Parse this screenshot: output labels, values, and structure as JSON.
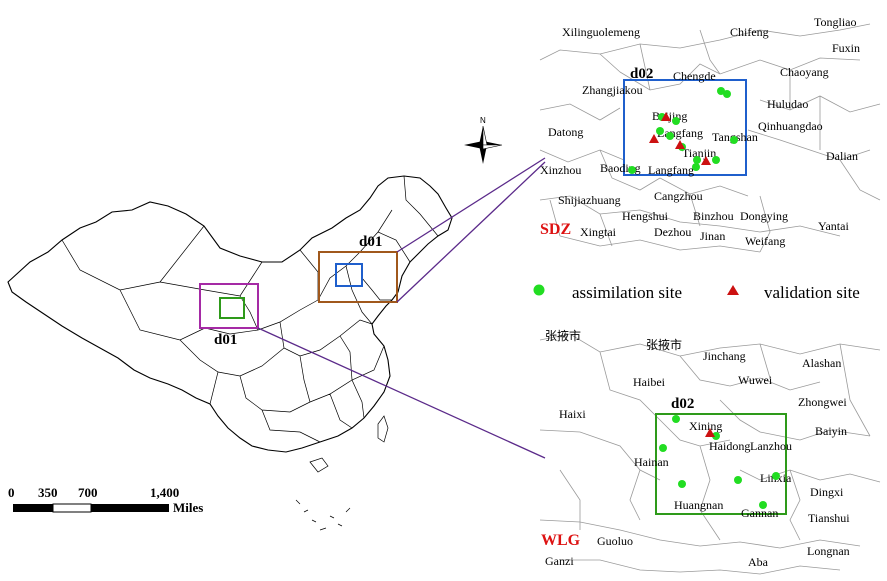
{
  "main_map": {
    "d01_label_brown": "d01",
    "d01_label_purple": "d01"
  },
  "north_arrow": {
    "letter": "N"
  },
  "scale_bar": {
    "ticks": [
      "0",
      "350",
      "700",
      "1,400"
    ],
    "unit": "Miles"
  },
  "legend": {
    "assimilation": {
      "label": "assimilation site",
      "color": "#22dd22",
      "symbol": "circle"
    },
    "validation": {
      "label": "validation site",
      "color": "#cc1111",
      "symbol": "triangle"
    }
  },
  "inset_sdz": {
    "code": "SDZ",
    "code_color": "#dd1111",
    "domain_label": "d02",
    "box_color": "#1f5fcc",
    "cities": [
      "Xilinguolemeng",
      "Chifeng",
      "Tongliao",
      "Fuxin",
      "Chengde",
      "Zhangjiakou",
      "Chaoyang",
      "Huludao",
      "Beijing",
      "Qinhuangdao",
      "Datong",
      "Langfang",
      "Tangshan",
      "Tianjin",
      "Dalian",
      "Xinzhou",
      "Baoding",
      "Langfang",
      "Cangzhou",
      "Shijiazhuang",
      "Hengshui",
      "Binzhou",
      "Dongying",
      "Yantai",
      "Xingtai",
      "Dezhou",
      "Jinan",
      "Weifang"
    ],
    "assimilation_sites": 12,
    "validation_sites": 4
  },
  "inset_wlg": {
    "code": "WLG",
    "code_color": "#dd1111",
    "domain_label": "d02",
    "box_color": "#2e9a1a",
    "cities": [
      "张掖市",
      "张掖市",
      "Jinchang",
      "Alashan",
      "Haibei",
      "Wuwei",
      "Zhongwei",
      "Haixi",
      "Xining",
      "Baiyin",
      "Haidong",
      "Lanzhou",
      "Hainan",
      "Linxia",
      "Dingxi",
      "Huangnan",
      "Gannan",
      "Tianshui",
      "Guoluo",
      "Longnan",
      "Ganzi",
      "Aba"
    ],
    "assimilation_sites": 7,
    "validation_sites": 1
  }
}
